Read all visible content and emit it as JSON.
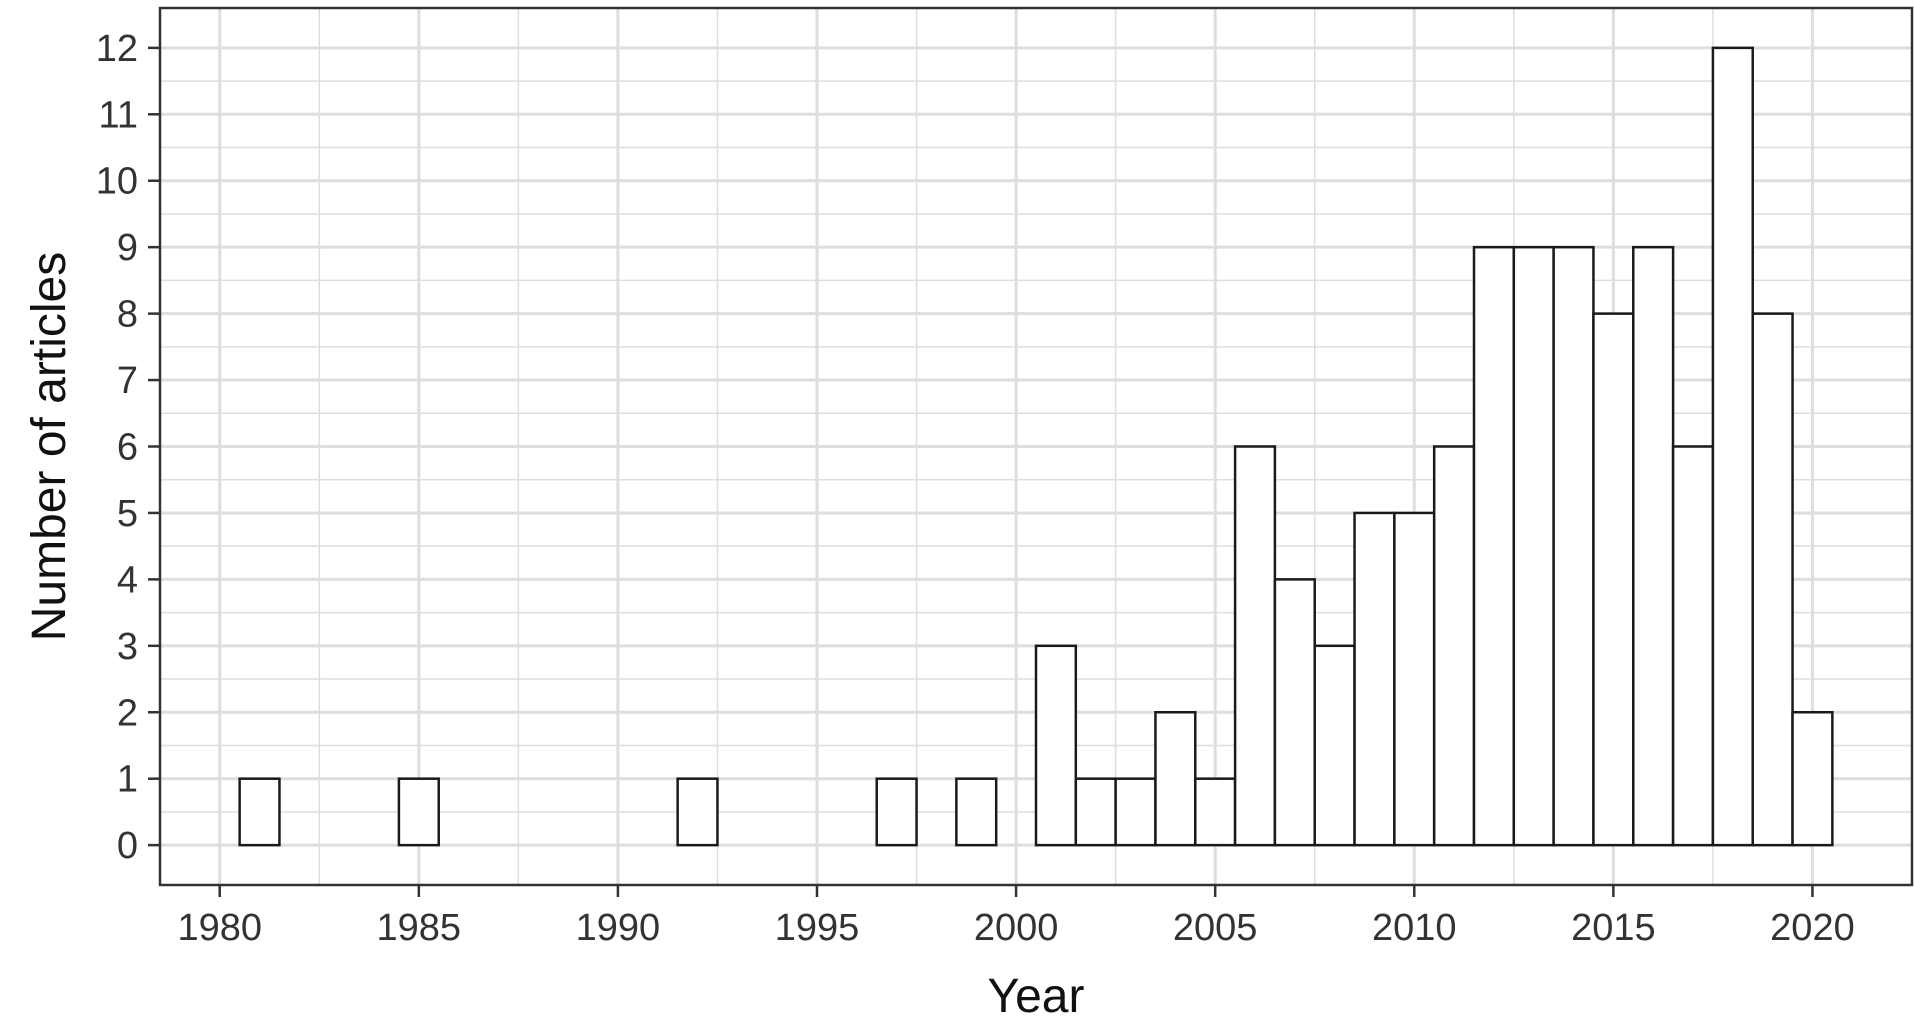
{
  "chart_data": {
    "type": "bar",
    "xlabel": "Year",
    "ylabel": "Number of articles",
    "x": [
      1981,
      1982,
      1983,
      1984,
      1985,
      1986,
      1987,
      1988,
      1989,
      1990,
      1991,
      1992,
      1993,
      1994,
      1995,
      1996,
      1997,
      1998,
      1999,
      2000,
      2001,
      2002,
      2003,
      2004,
      2005,
      2006,
      2007,
      2008,
      2009,
      2010,
      2011,
      2012,
      2013,
      2014,
      2015,
      2016,
      2017,
      2018,
      2019,
      2020
    ],
    "values": [
      1,
      0,
      0,
      0,
      1,
      0,
      0,
      0,
      0,
      0,
      0,
      1,
      0,
      0,
      0,
      0,
      1,
      0,
      1,
      0,
      3,
      1,
      1,
      2,
      1,
      6,
      4,
      3,
      5,
      5,
      6,
      9,
      9,
      9,
      8,
      9,
      6,
      12,
      8,
      2
    ],
    "xlim": [
      1978.5,
      2022.5
    ],
    "ylim": [
      -0.6,
      12.6
    ],
    "xticks": [
      1980,
      1985,
      1990,
      1995,
      2000,
      2005,
      2010,
      2015,
      2020
    ],
    "xtick_labels": [
      "1980",
      "1985",
      "1990",
      "1995",
      "2000",
      "2005",
      "2010",
      "2015",
      "2020"
    ],
    "yticks": [
      0,
      1,
      2,
      3,
      4,
      5,
      6,
      7,
      8,
      9,
      10,
      11,
      12
    ],
    "ytick_labels": [
      "0",
      "1",
      "2",
      "3",
      "4",
      "5",
      "6",
      "7",
      "8",
      "9",
      "10",
      "11",
      "12"
    ],
    "grid": true,
    "colors": {
      "bar_fill": "#ffffff",
      "bar_stroke": "#1a1a1a",
      "grid": "#dedede",
      "panel_border": "#333333"
    }
  }
}
